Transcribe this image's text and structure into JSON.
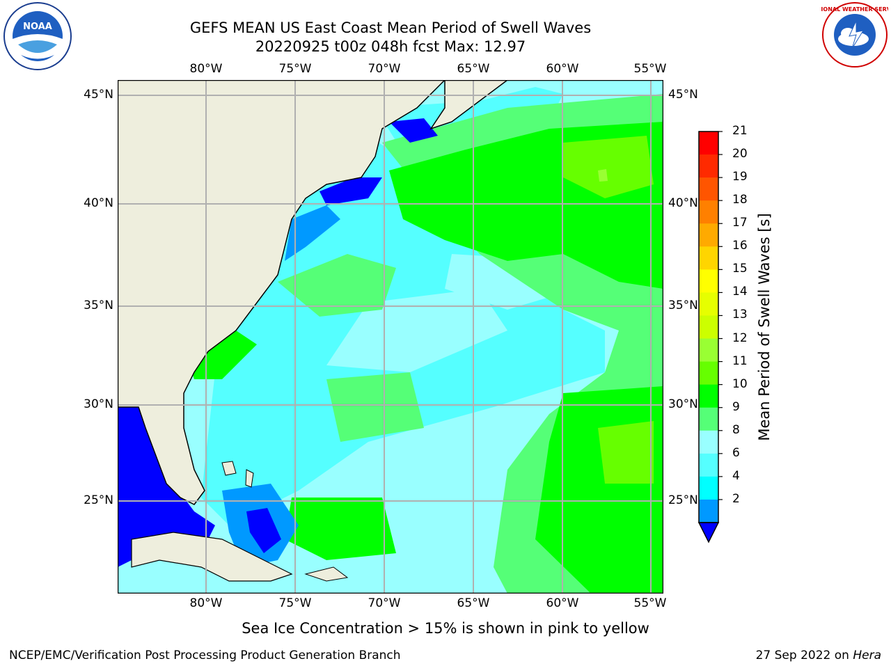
{
  "title_line1": "GEFS MEAN US East Coast Mean Period of Swell Waves",
  "title_line2": "20220925 t00z 048h fcst   Max: 12.97",
  "lon_labels": [
    "80°W",
    "75°W",
    "70°W",
    "65°W",
    "60°W",
    "55°W"
  ],
  "lat_labels": [
    "45°N",
    "40°N",
    "35°N",
    "30°N",
    "25°N"
  ],
  "colorbar": {
    "label": "Mean Period of Swell Waves [s]",
    "ticks": [
      "21",
      "20",
      "19",
      "18",
      "17",
      "16",
      "15",
      "14",
      "13",
      "12",
      "11",
      "10",
      "9",
      "8",
      "6",
      "4",
      "2"
    ],
    "colors": [
      "#ff0000",
      "#ff2a00",
      "#ff5500",
      "#ff8000",
      "#ffaa00",
      "#ffd500",
      "#ffff00",
      "#e6ff00",
      "#ccff00",
      "#99ff33",
      "#66ff00",
      "#00ff00",
      "#55ff77",
      "#99ffff",
      "#55ffff",
      "#00ffff",
      "#0099ff",
      "#0000ff"
    ]
  },
  "land_color": "#eeeedd",
  "footnote": "Sea Ice Concentration > 15% is shown in pink to yellow",
  "credit_left": "NCEP/EMC/Verification Post Processing Product Generation Branch",
  "credit_right_date": "27 Sep 2022 on ",
  "credit_right_host": "Hera",
  "logo_left_text": "NOAA",
  "logo_right_text": "NATIONAL WEATHER SERVICE"
}
